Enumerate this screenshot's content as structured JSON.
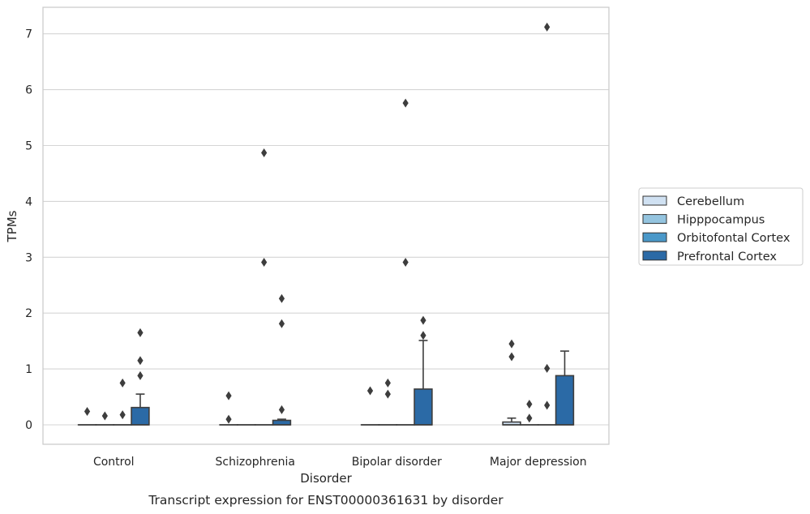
{
  "chart_data": {
    "type": "box",
    "title": "",
    "caption": "Transcript expression for ENST00000361631 by disorder",
    "xlabel": "Disorder",
    "ylabel": "TPMs",
    "ylim": [
      -0.35,
      7.5
    ],
    "yticks": [
      0,
      1,
      2,
      3,
      4,
      5,
      6,
      7
    ],
    "grid": true,
    "legend_position": "right",
    "categories": [
      "Control",
      "Schizophrenia",
      "Bipolar disorder",
      "Major depression"
    ],
    "series": [
      {
        "name": "Cerebellum",
        "color": "#d0e1f2",
        "boxes": [
          {
            "category": "Control",
            "q1": 0,
            "median": 0,
            "q3": 0,
            "whisker_low": 0,
            "whisker_high": 0,
            "outliers": [
              0.24
            ]
          },
          {
            "category": "Schizophrenia",
            "q1": 0,
            "median": 0,
            "q3": 0,
            "whisker_low": 0,
            "whisker_high": 0,
            "outliers": [
              0.52,
              0.1
            ]
          },
          {
            "category": "Bipolar disorder",
            "q1": 0,
            "median": 0,
            "q3": 0,
            "whisker_low": 0,
            "whisker_high": 0,
            "outliers": [
              0.61
            ]
          },
          {
            "category": "Major depression",
            "q1": 0,
            "median": 0,
            "q3": 0.05,
            "whisker_low": 0,
            "whisker_high": 0.12,
            "outliers": [
              1.45,
              1.22
            ]
          }
        ]
      },
      {
        "name": "Hipppocampus",
        "color": "#94c4df",
        "boxes": [
          {
            "category": "Control",
            "q1": 0,
            "median": 0,
            "q3": 0,
            "whisker_low": 0,
            "whisker_high": 0,
            "outliers": [
              0.16
            ]
          },
          {
            "category": "Schizophrenia",
            "q1": 0,
            "median": 0,
            "q3": 0,
            "whisker_low": 0,
            "whisker_high": 0,
            "outliers": []
          },
          {
            "category": "Bipolar disorder",
            "q1": 0,
            "median": 0,
            "q3": 0,
            "whisker_low": 0,
            "whisker_high": 0,
            "outliers": [
              0.75,
              0.55
            ]
          },
          {
            "category": "Major depression",
            "q1": 0,
            "median": 0,
            "q3": 0,
            "whisker_low": 0,
            "whisker_high": 0,
            "outliers": [
              0.37,
              0.12
            ]
          }
        ]
      },
      {
        "name": "Orbitofontal Cortex",
        "color": "#4a98c9",
        "boxes": [
          {
            "category": "Control",
            "q1": 0,
            "median": 0,
            "q3": 0,
            "whisker_low": 0,
            "whisker_high": 0,
            "outliers": [
              0.75,
              0.18
            ]
          },
          {
            "category": "Schizophrenia",
            "q1": 0,
            "median": 0,
            "q3": 0,
            "whisker_low": 0,
            "whisker_high": 0,
            "outliers": [
              4.87,
              2.91
            ]
          },
          {
            "category": "Bipolar disorder",
            "q1": 0,
            "median": 0,
            "q3": 0,
            "whisker_low": 0,
            "whisker_high": 0,
            "outliers": [
              5.76,
              2.91
            ]
          },
          {
            "category": "Major depression",
            "q1": 0,
            "median": 0,
            "q3": 0,
            "whisker_low": 0,
            "whisker_high": 0,
            "outliers": [
              7.12,
              1.01,
              0.35
            ]
          }
        ]
      },
      {
        "name": "Prefrontal Cortex",
        "color": "#2b6aa6",
        "boxes": [
          {
            "category": "Control",
            "q1": 0,
            "median": 0,
            "q3": 0.31,
            "whisker_low": 0,
            "whisker_high": 0.55,
            "outliers": [
              1.65,
              1.15,
              0.88
            ]
          },
          {
            "category": "Schizophrenia",
            "q1": 0,
            "median": 0,
            "q3": 0.08,
            "whisker_low": 0,
            "whisker_high": 0.1,
            "outliers": [
              2.26,
              1.81,
              0.27
            ]
          },
          {
            "category": "Bipolar disorder",
            "q1": 0,
            "median": 0,
            "q3": 0.64,
            "whisker_low": 0,
            "whisker_high": 1.51,
            "outliers": [
              1.87,
              1.6
            ]
          },
          {
            "category": "Major depression",
            "q1": 0,
            "median": 0,
            "q3": 0.88,
            "whisker_low": 0,
            "whisker_high": 1.32,
            "outliers": []
          }
        ]
      }
    ]
  }
}
